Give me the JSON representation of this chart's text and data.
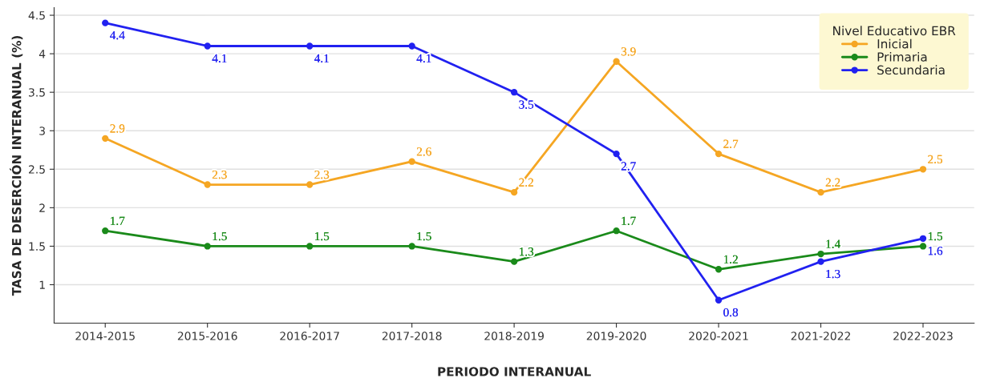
{
  "chart_data": {
    "type": "line",
    "xlabel": "PERIODO INTERANUAL",
    "ylabel": "TASA DE DESERCIÓN INTERANUAL (%)",
    "legend_title": "Nivel Educativo EBR",
    "categories": [
      "2014-2015",
      "2015-2016",
      "2016-2017",
      "2017-2018",
      "2018-2019",
      "2019-2020",
      "2020-2021",
      "2021-2022",
      "2022-2023"
    ],
    "series": [
      {
        "name": "Inicial",
        "color": "#f5a623",
        "values": [
          2.9,
          2.3,
          2.3,
          2.6,
          2.2,
          3.9,
          2.7,
          2.2,
          2.5
        ]
      },
      {
        "name": "Primaria",
        "color": "#1a8a1a",
        "values": [
          1.7,
          1.5,
          1.5,
          1.5,
          1.3,
          1.7,
          1.2,
          1.4,
          1.5
        ]
      },
      {
        "name": "Secundaria",
        "color": "#2121f0",
        "values": [
          4.4,
          4.1,
          4.1,
          4.1,
          3.5,
          2.7,
          0.8,
          1.3,
          1.6
        ]
      }
    ],
    "ylim": [
      0.5,
      4.6
    ],
    "yticks": [
      1,
      1.5,
      2,
      2.5,
      3,
      3.5,
      4,
      4.5
    ],
    "grid": "y",
    "legend": "top right",
    "marker": "circle",
    "line_style": "solid",
    "data_labels": true
  }
}
